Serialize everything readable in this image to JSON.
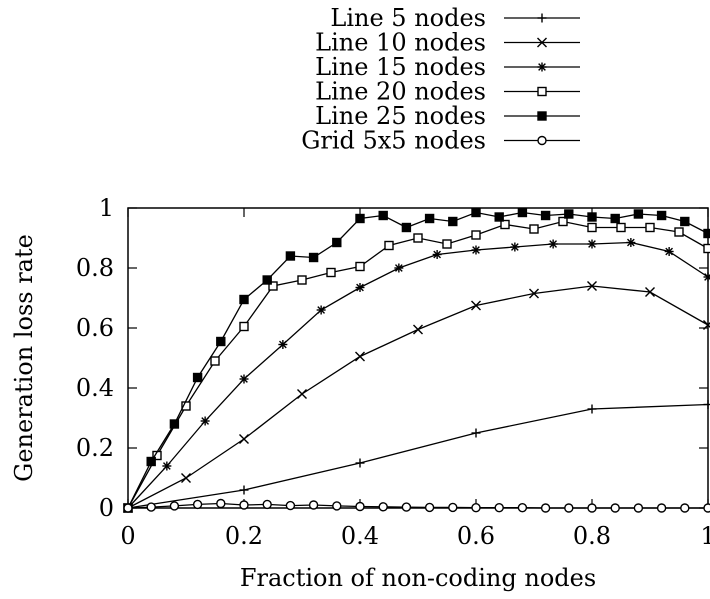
{
  "chart_data": {
    "type": "line",
    "title": "",
    "xlabel": "Fraction of non-coding nodes",
    "ylabel": "Generation loss rate",
    "xlim": [
      0,
      1
    ],
    "ylim": [
      0,
      1
    ],
    "xticks": [
      "0",
      "0.2",
      "0.4",
      "0.6",
      "0.8",
      "1"
    ],
    "yticks": [
      "0",
      "0.2",
      "0.4",
      "0.6",
      "0.8",
      "1"
    ],
    "grid": false,
    "legend_position": "top",
    "series": [
      {
        "name": "Line 5 nodes",
        "marker": "plus",
        "points": [
          [
            0,
            0.0
          ],
          [
            0.2,
            0.06
          ],
          [
            0.4,
            0.15
          ],
          [
            0.6,
            0.25
          ],
          [
            0.8,
            0.33
          ],
          [
            1.0,
            0.345
          ]
        ]
      },
      {
        "name": "Line 10 nodes",
        "marker": "cross",
        "points": [
          [
            0,
            0.0
          ],
          [
            0.1,
            0.1
          ],
          [
            0.2,
            0.23
          ],
          [
            0.3,
            0.38
          ],
          [
            0.4,
            0.505
          ],
          [
            0.5,
            0.595
          ],
          [
            0.6,
            0.675
          ],
          [
            0.7,
            0.715
          ],
          [
            0.8,
            0.74
          ],
          [
            0.9,
            0.72
          ],
          [
            1.0,
            0.61
          ]
        ]
      },
      {
        "name": "Line 15 nodes",
        "marker": "star",
        "points": [
          [
            0,
            0.0
          ],
          [
            0.067,
            0.14
          ],
          [
            0.133,
            0.29
          ],
          [
            0.2,
            0.43
          ],
          [
            0.267,
            0.545
          ],
          [
            0.333,
            0.66
          ],
          [
            0.4,
            0.735
          ],
          [
            0.467,
            0.8
          ],
          [
            0.533,
            0.845
          ],
          [
            0.6,
            0.86
          ],
          [
            0.667,
            0.87
          ],
          [
            0.733,
            0.88
          ],
          [
            0.8,
            0.88
          ],
          [
            0.867,
            0.885
          ],
          [
            0.933,
            0.855
          ],
          [
            1.0,
            0.77
          ]
        ]
      },
      {
        "name": "Line 20 nodes",
        "marker": "box",
        "points": [
          [
            0,
            0.0
          ],
          [
            0.05,
            0.175
          ],
          [
            0.1,
            0.34
          ],
          [
            0.15,
            0.49
          ],
          [
            0.2,
            0.605
          ],
          [
            0.25,
            0.74
          ],
          [
            0.3,
            0.76
          ],
          [
            0.35,
            0.785
          ],
          [
            0.4,
            0.805
          ],
          [
            0.45,
            0.875
          ],
          [
            0.5,
            0.9
          ],
          [
            0.55,
            0.88
          ],
          [
            0.6,
            0.91
          ],
          [
            0.65,
            0.945
          ],
          [
            0.7,
            0.93
          ],
          [
            0.75,
            0.955
          ],
          [
            0.8,
            0.935
          ],
          [
            0.85,
            0.935
          ],
          [
            0.9,
            0.935
          ],
          [
            0.95,
            0.92
          ],
          [
            1.0,
            0.865
          ]
        ]
      },
      {
        "name": "Line 25 nodes",
        "marker": "filledbox",
        "points": [
          [
            0,
            0.0
          ],
          [
            0.04,
            0.155
          ],
          [
            0.08,
            0.28
          ],
          [
            0.12,
            0.435
          ],
          [
            0.16,
            0.555
          ],
          [
            0.2,
            0.695
          ],
          [
            0.24,
            0.76
          ],
          [
            0.28,
            0.84
          ],
          [
            0.32,
            0.835
          ],
          [
            0.36,
            0.885
          ],
          [
            0.4,
            0.965
          ],
          [
            0.44,
            0.975
          ],
          [
            0.48,
            0.935
          ],
          [
            0.52,
            0.965
          ],
          [
            0.56,
            0.955
          ],
          [
            0.6,
            0.985
          ],
          [
            0.64,
            0.97
          ],
          [
            0.68,
            0.985
          ],
          [
            0.72,
            0.975
          ],
          [
            0.76,
            0.98
          ],
          [
            0.8,
            0.97
          ],
          [
            0.84,
            0.965
          ],
          [
            0.88,
            0.98
          ],
          [
            0.92,
            0.975
          ],
          [
            0.96,
            0.955
          ],
          [
            1.0,
            0.915
          ]
        ]
      },
      {
        "name": "Grid 5x5 nodes",
        "marker": "circle",
        "points": [
          [
            0,
            0.0
          ],
          [
            0.04,
            0.003
          ],
          [
            0.08,
            0.007
          ],
          [
            0.12,
            0.012
          ],
          [
            0.16,
            0.015
          ],
          [
            0.2,
            0.01
          ],
          [
            0.24,
            0.012
          ],
          [
            0.28,
            0.008
          ],
          [
            0.32,
            0.01
          ],
          [
            0.36,
            0.007
          ],
          [
            0.4,
            0.005
          ],
          [
            0.44,
            0.004
          ],
          [
            0.48,
            0.003
          ],
          [
            0.52,
            0.002
          ],
          [
            0.56,
            0.002
          ],
          [
            0.6,
            0.001
          ],
          [
            0.64,
            0.001
          ],
          [
            0.68,
            0.001
          ],
          [
            0.72,
            0.0
          ],
          [
            0.76,
            0.0
          ],
          [
            0.8,
            0.0
          ],
          [
            0.84,
            0.0
          ],
          [
            0.88,
            0.0
          ],
          [
            0.92,
            0.0
          ],
          [
            0.96,
            0.0
          ],
          [
            1.0,
            0.0
          ]
        ]
      }
    ]
  }
}
